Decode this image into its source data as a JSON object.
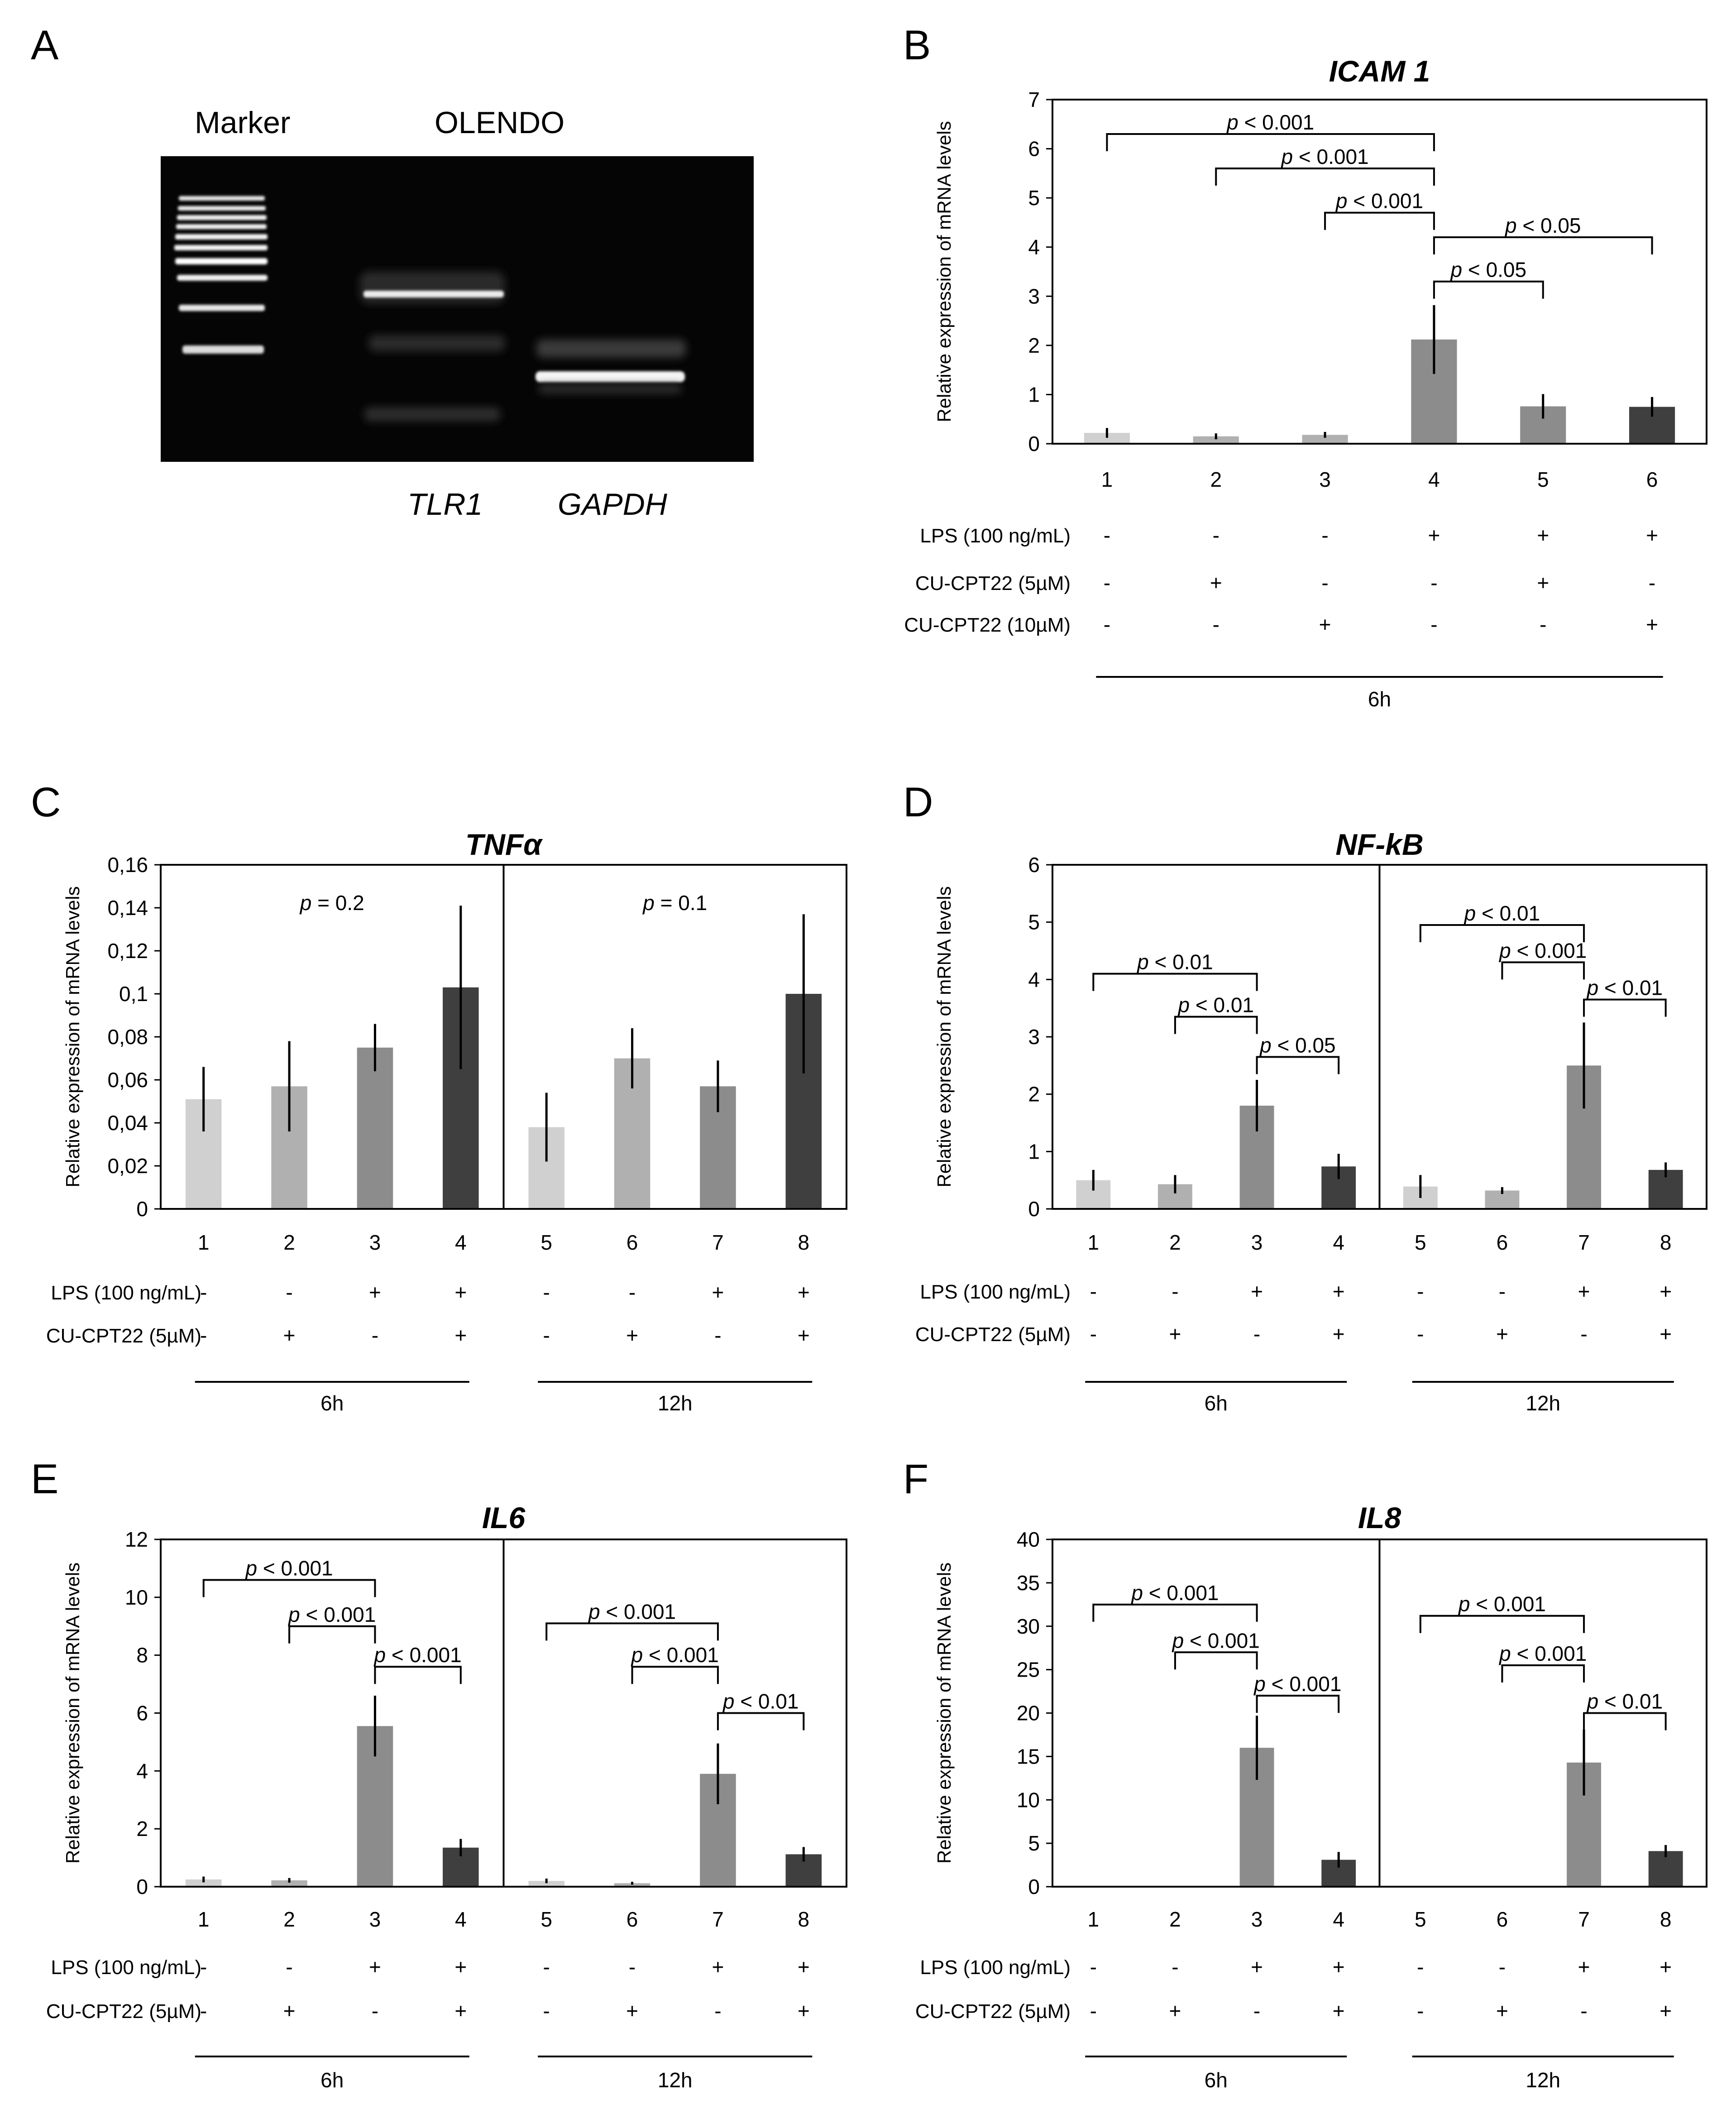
{
  "panels": {
    "A": {
      "letter": "A",
      "marker_label": "Marker",
      "sample_label": "OLENDO",
      "lane_labels": [
        "TLR1",
        "GAPDH"
      ]
    }
  },
  "common": {
    "ylabel": "Relative expression of mRNA levels",
    "row_labels": {
      "lps": "LPS (100 ng/mL)",
      "cu5": "CU-CPT22 (5µM)",
      "cu10": "CU-CPT22 (10µM)"
    }
  },
  "colors": {
    "bar1": "#d0d0d0",
    "bar2": "#b0b0b0",
    "bar3": "#8c8c8c",
    "bar4": "#3f3f3f",
    "errorbar": "#000000"
  },
  "chart_data": [
    {
      "panel": "B",
      "type": "bar",
      "title": "ICAM 1",
      "ylim": [
        0,
        7
      ],
      "yticks": [
        "0",
        "1",
        "2",
        "3",
        "4",
        "5",
        "6",
        "7"
      ],
      "categories": [
        "1",
        "2",
        "3",
        "4",
        "5",
        "6"
      ],
      "values": [
        0.22,
        0.15,
        0.18,
        2.12,
        0.76,
        0.75
      ],
      "errors": [
        0.1,
        0.06,
        0.06,
        0.7,
        0.25,
        0.2
      ],
      "bar_colors": [
        "bar1",
        "bar2",
        "bar2",
        "bar3",
        "bar3",
        "bar4"
      ],
      "lps": [
        "-",
        "-",
        "-",
        "+",
        "+",
        "+"
      ],
      "cu5": [
        "-",
        "+",
        "-",
        "-",
        "+",
        "-"
      ],
      "cu10": [
        "-",
        "-",
        "+",
        "-",
        "-",
        "+"
      ],
      "time_groups": [
        {
          "label": "6h",
          "from": 0,
          "to": 5
        }
      ],
      "brackets": [
        {
          "from": 0,
          "to": 3,
          "y": 6.3,
          "p": "< 0.001"
        },
        {
          "from": 1,
          "to": 3,
          "y": 5.6,
          "p": "< 0.001"
        },
        {
          "from": 2,
          "to": 3,
          "y": 4.7,
          "p": "< 0.001"
        },
        {
          "from": 3,
          "to": 5,
          "y": 4.2,
          "p": "< 0.05"
        },
        {
          "from": 3,
          "to": 4,
          "y": 3.3,
          "p": "< 0.05"
        }
      ]
    },
    {
      "panel": "C",
      "type": "bar",
      "title": "TNFα",
      "ylim": [
        0,
        0.16
      ],
      "yticks": [
        "0",
        "0,02",
        "0,04",
        "0,06",
        "0,08",
        "0,1",
        "0,12",
        "0,14",
        "0,16"
      ],
      "categories": [
        "1",
        "2",
        "3",
        "4",
        "5",
        "6",
        "7",
        "8"
      ],
      "values": [
        0.051,
        0.057,
        0.075,
        0.103,
        0.038,
        0.07,
        0.057,
        0.1
      ],
      "errors": [
        0.015,
        0.021,
        0.011,
        0.038,
        0.016,
        0.014,
        0.012,
        0.037
      ],
      "bar_colors": [
        "bar1",
        "bar2",
        "bar3",
        "bar4",
        "bar1",
        "bar2",
        "bar3",
        "bar4"
      ],
      "lps": [
        "-",
        "-",
        "+",
        "+",
        "-",
        "-",
        "+",
        "+"
      ],
      "cu5": [
        "-",
        "+",
        "-",
        "+",
        "-",
        "+",
        "-",
        "+"
      ],
      "divider_after": 3,
      "time_groups": [
        {
          "label": "6h",
          "from": 0,
          "to": 3
        },
        {
          "label": "12h",
          "from": 4,
          "to": 7
        }
      ],
      "annotations": [
        {
          "center": 1.5,
          "y": 0.139,
          "p": "= 0.2"
        },
        {
          "center": 5.5,
          "y": 0.139,
          "p": "= 0.1"
        }
      ]
    },
    {
      "panel": "D",
      "type": "bar",
      "title": "NF-kB",
      "ylim": [
        0,
        6
      ],
      "yticks": [
        "0",
        "1",
        "2",
        "3",
        "4",
        "5",
        "6"
      ],
      "categories": [
        "1",
        "2",
        "3",
        "4",
        "5",
        "6",
        "7",
        "8"
      ],
      "values": [
        0.5,
        0.43,
        1.8,
        0.74,
        0.39,
        0.32,
        2.5,
        0.68
      ],
      "errors": [
        0.18,
        0.16,
        0.45,
        0.22,
        0.2,
        0.06,
        0.75,
        0.13
      ],
      "bar_colors": [
        "bar1",
        "bar2",
        "bar3",
        "bar4",
        "bar1",
        "bar2",
        "bar3",
        "bar4"
      ],
      "lps": [
        "-",
        "-",
        "+",
        "+",
        "-",
        "-",
        "+",
        "+"
      ],
      "cu5": [
        "-",
        "+",
        "-",
        "+",
        "-",
        "+",
        "-",
        "+"
      ],
      "divider_after": 3,
      "time_groups": [
        {
          "label": "6h",
          "from": 0,
          "to": 3
        },
        {
          "label": "12h",
          "from": 4,
          "to": 7
        }
      ],
      "brackets": [
        {
          "from": 0,
          "to": 2,
          "y": 4.1,
          "p": "< 0.01"
        },
        {
          "from": 1,
          "to": 2,
          "y": 3.35,
          "p": "< 0.01"
        },
        {
          "from": 2,
          "to": 3,
          "y": 2.65,
          "p": "< 0.05"
        },
        {
          "from": 4,
          "to": 6,
          "y": 4.95,
          "p": "< 0.01"
        },
        {
          "from": 5,
          "to": 6,
          "y": 4.3,
          "p": "< 0.001"
        },
        {
          "from": 6,
          "to": 7,
          "y": 3.65,
          "p": "< 0.01"
        }
      ]
    },
    {
      "panel": "E",
      "type": "bar",
      "title": "IL6",
      "ylim": [
        0,
        12
      ],
      "yticks": [
        "0",
        "2",
        "4",
        "6",
        "8",
        "10",
        "12"
      ],
      "categories": [
        "1",
        "2",
        "3",
        "4",
        "5",
        "6",
        "7",
        "8"
      ],
      "values": [
        0.25,
        0.22,
        5.55,
        1.35,
        0.2,
        0.12,
        3.9,
        1.12
      ],
      "errors": [
        0.1,
        0.08,
        1.05,
        0.3,
        0.08,
        0.05,
        1.05,
        0.25
      ],
      "bar_colors": [
        "bar1",
        "bar2",
        "bar3",
        "bar4",
        "bar1",
        "bar2",
        "bar3",
        "bar4"
      ],
      "lps": [
        "-",
        "-",
        "+",
        "+",
        "-",
        "-",
        "+",
        "+"
      ],
      "cu5": [
        "-",
        "+",
        "-",
        "+",
        "-",
        "+",
        "-",
        "+"
      ],
      "divider_after": 3,
      "time_groups": [
        {
          "label": "6h",
          "from": 0,
          "to": 3
        },
        {
          "label": "12h",
          "from": 4,
          "to": 7
        }
      ],
      "brackets": [
        {
          "from": 0,
          "to": 2,
          "y": 10.6,
          "p": "< 0.001"
        },
        {
          "from": 1,
          "to": 2,
          "y": 9.0,
          "p": "< 0.001"
        },
        {
          "from": 2,
          "to": 3,
          "y": 7.6,
          "p": "< 0.001"
        },
        {
          "from": 4,
          "to": 6,
          "y": 9.1,
          "p": "< 0.001"
        },
        {
          "from": 5,
          "to": 6,
          "y": 7.6,
          "p": "< 0.001"
        },
        {
          "from": 6,
          "to": 7,
          "y": 6.0,
          "p": "< 0.01"
        }
      ]
    },
    {
      "panel": "F",
      "type": "bar",
      "title": "IL8",
      "ylim": [
        0,
        40
      ],
      "yticks": [
        "0",
        "5",
        "10",
        "15",
        "20",
        "25",
        "30",
        "35",
        "40"
      ],
      "categories": [
        "1",
        "2",
        "3",
        "4",
        "5",
        "6",
        "7",
        "8"
      ],
      "values": [
        0,
        0,
        16,
        3.1,
        0,
        0,
        14.3,
        4.1
      ],
      "errors": [
        0,
        0,
        3.7,
        0.9,
        0,
        0,
        3.8,
        0.7
      ],
      "bar_colors": [
        "bar1",
        "bar2",
        "bar3",
        "bar4",
        "bar1",
        "bar2",
        "bar3",
        "bar4"
      ],
      "lps": [
        "-",
        "-",
        "+",
        "+",
        "-",
        "-",
        "+",
        "+"
      ],
      "cu5": [
        "-",
        "+",
        "-",
        "+",
        "-",
        "+",
        "-",
        "+"
      ],
      "divider_after": 3,
      "time_groups": [
        {
          "label": "6h",
          "from": 0,
          "to": 3
        },
        {
          "label": "12h",
          "from": 4,
          "to": 7
        }
      ],
      "brackets": [
        {
          "from": 0,
          "to": 2,
          "y": 32.5,
          "p": "< 0.001"
        },
        {
          "from": 1,
          "to": 2,
          "y": 27.0,
          "p": "< 0.001"
        },
        {
          "from": 2,
          "to": 3,
          "y": 22.0,
          "p": "< 0.001"
        },
        {
          "from": 4,
          "to": 6,
          "y": 31.2,
          "p": "< 0.001"
        },
        {
          "from": 5,
          "to": 6,
          "y": 25.5,
          "p": "< 0.001"
        },
        {
          "from": 6,
          "to": 7,
          "y": 20.0,
          "p": "< 0.01"
        }
      ]
    }
  ]
}
